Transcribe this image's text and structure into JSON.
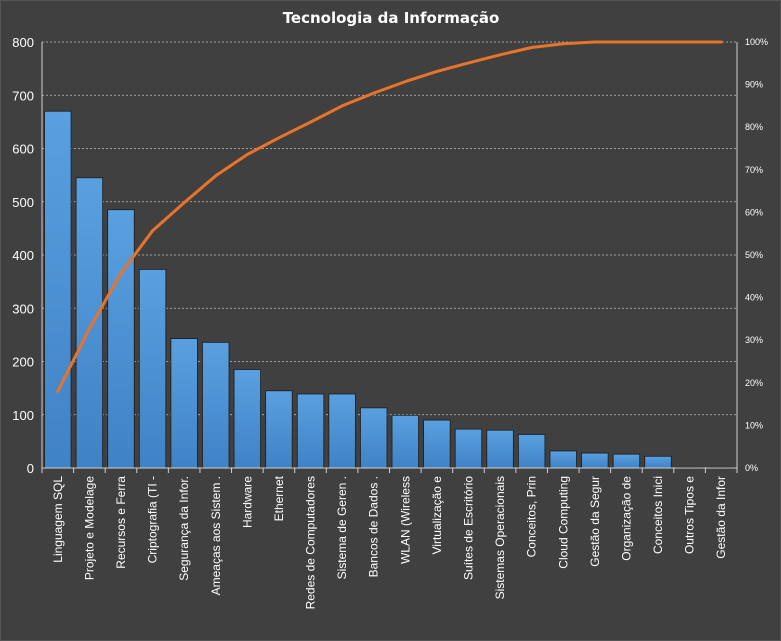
{
  "chart_data": {
    "type": "bar",
    "title": "Tecnologia da Informação",
    "categories": [
      "Linguagem SQL",
      "Projeto e Modelage",
      "Recursos e Ferra",
      "Criptografia (TI -",
      "Segurança da Infor.",
      "Ameaças aos Sistem .",
      "Hardware",
      "Ethernet",
      "Redes de Computadores",
      "Sistema de Geren .",
      "Bancos de Dados .",
      "WLAN (Wireless",
      "Virtualização e",
      "Suítes de Escritório",
      "Sistemas Operacionais",
      "Conceitos, Prin",
      "Cloud Computing",
      "Gestão da Segur",
      "Organização de",
      "Conceitos Inici",
      "Outros Tipos e",
      "Gestão da Infor"
    ],
    "series": [
      {
        "type": "bar",
        "values": [
          670,
          545,
          485,
          373,
          243,
          236,
          185,
          145,
          139,
          139,
          113,
          99,
          90,
          73,
          71,
          63,
          32,
          28,
          26,
          22,
          1,
          1
        ],
        "color": "#4f94d4"
      },
      {
        "type": "line",
        "axis": "right",
        "values": [
          18.0,
          32.7,
          45.7,
          55.7,
          62.3,
          68.6,
          73.6,
          77.5,
          81.2,
          85.0,
          88.0,
          90.7,
          93.1,
          95.1,
          97.0,
          98.7,
          99.6,
          100.0,
          100.0,
          100.0,
          100.0,
          100.0
        ],
        "color": "#e8742b"
      }
    ],
    "y_ticks": [
      "0",
      "100",
      "200",
      "300",
      "400",
      "500",
      "600",
      "700",
      "800"
    ],
    "ylim": [
      0,
      800
    ],
    "y2_ticks": [
      "0%",
      "10%",
      "20%",
      "30%",
      "40%",
      "50%",
      "60%",
      "70%",
      "80%",
      "90%",
      "100%"
    ],
    "y2lim": [
      0,
      100
    ],
    "grid": true,
    "background_color": "#404040",
    "grid_color": "#bfbfbf"
  }
}
